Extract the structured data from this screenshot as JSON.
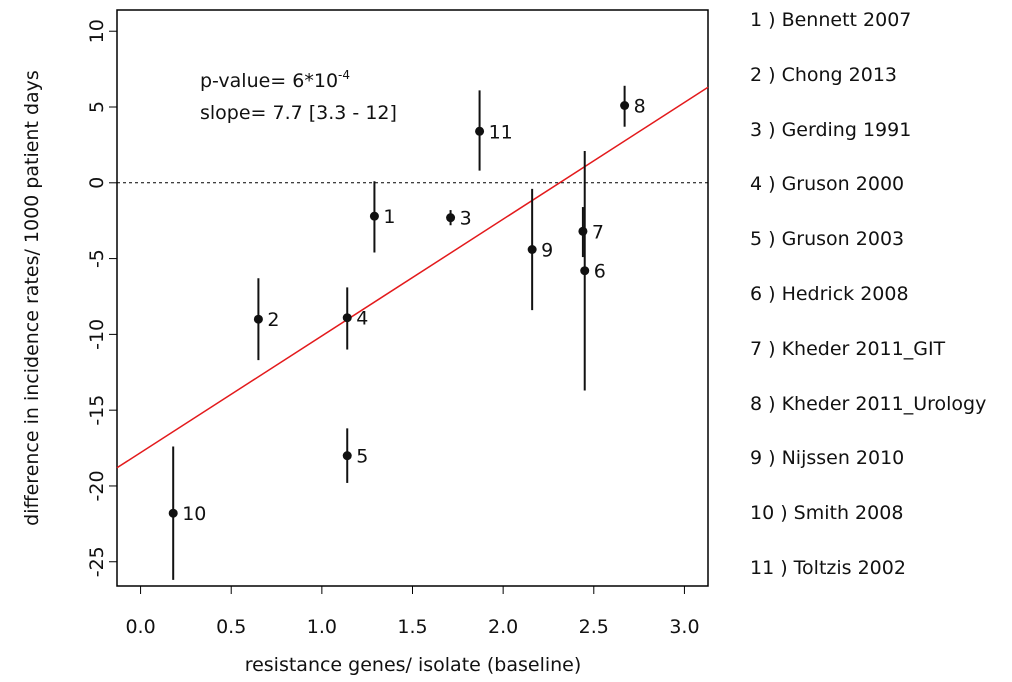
{
  "chart_data": {
    "type": "scatter",
    "xlabel": "resistance genes/ isolate (baseline)",
    "ylabel": "difference in incidence rates/ 1000 patient days",
    "xlim": [
      -0.13,
      3.13
    ],
    "ylim": [
      -26.6,
      11.4
    ],
    "xticks": [
      "0.0",
      "0.5",
      "1.0",
      "1.5",
      "2.0",
      "2.5",
      "3.0"
    ],
    "yticks": [
      "-25",
      "-20",
      "-15",
      "-10",
      "-5",
      "0",
      "5",
      "10"
    ],
    "reference_line": 0,
    "annotation": {
      "pvalue_prefix": "p-value= 6*10",
      "pvalue_exponent": "-4",
      "slope": "slope= 7.7 [3.3 - 12]"
    },
    "regression": {
      "intercept": -17.8,
      "slope": 7.7,
      "color": "#e31a1c"
    },
    "points": [
      {
        "label": "1",
        "x": 1.29,
        "y": -2.2,
        "lo": -4.6,
        "hi": 0.1
      },
      {
        "label": "2",
        "x": 0.65,
        "y": -9.0,
        "lo": -11.7,
        "hi": -6.3
      },
      {
        "label": "3",
        "x": 1.71,
        "y": -2.3,
        "lo": -2.8,
        "hi": -1.8
      },
      {
        "label": "4",
        "x": 1.14,
        "y": -8.9,
        "lo": -11.0,
        "hi": -6.9
      },
      {
        "label": "5",
        "x": 1.14,
        "y": -18.0,
        "lo": -19.8,
        "hi": -16.2
      },
      {
        "label": "6",
        "x": 2.45,
        "y": -5.8,
        "lo": -13.7,
        "hi": 2.1
      },
      {
        "label": "7",
        "x": 2.44,
        "y": -3.2,
        "lo": -4.9,
        "hi": -1.6
      },
      {
        "label": "8",
        "x": 2.67,
        "y": 5.1,
        "lo": 3.7,
        "hi": 6.4
      },
      {
        "label": "9",
        "x": 2.16,
        "y": -4.4,
        "lo": -8.4,
        "hi": -0.4
      },
      {
        "label": "10",
        "x": 0.18,
        "y": -21.8,
        "lo": -26.2,
        "hi": -17.4
      },
      {
        "label": "11",
        "x": 1.87,
        "y": 3.4,
        "lo": 0.8,
        "hi": 6.1
      }
    ],
    "legend": [
      "1 ) Bennett 2007",
      "2 ) Chong 2013",
      "3 ) Gerding 1991",
      "4 ) Gruson 2000",
      "5 ) Gruson 2003",
      "6 ) Hedrick 2008",
      "7 ) Kheder 2011_GIT",
      "8 ) Kheder 2011_Urology",
      "9 ) Nijssen 2010",
      "10 ) Smith 2008",
      "11 ) Toltzis 2002"
    ]
  }
}
